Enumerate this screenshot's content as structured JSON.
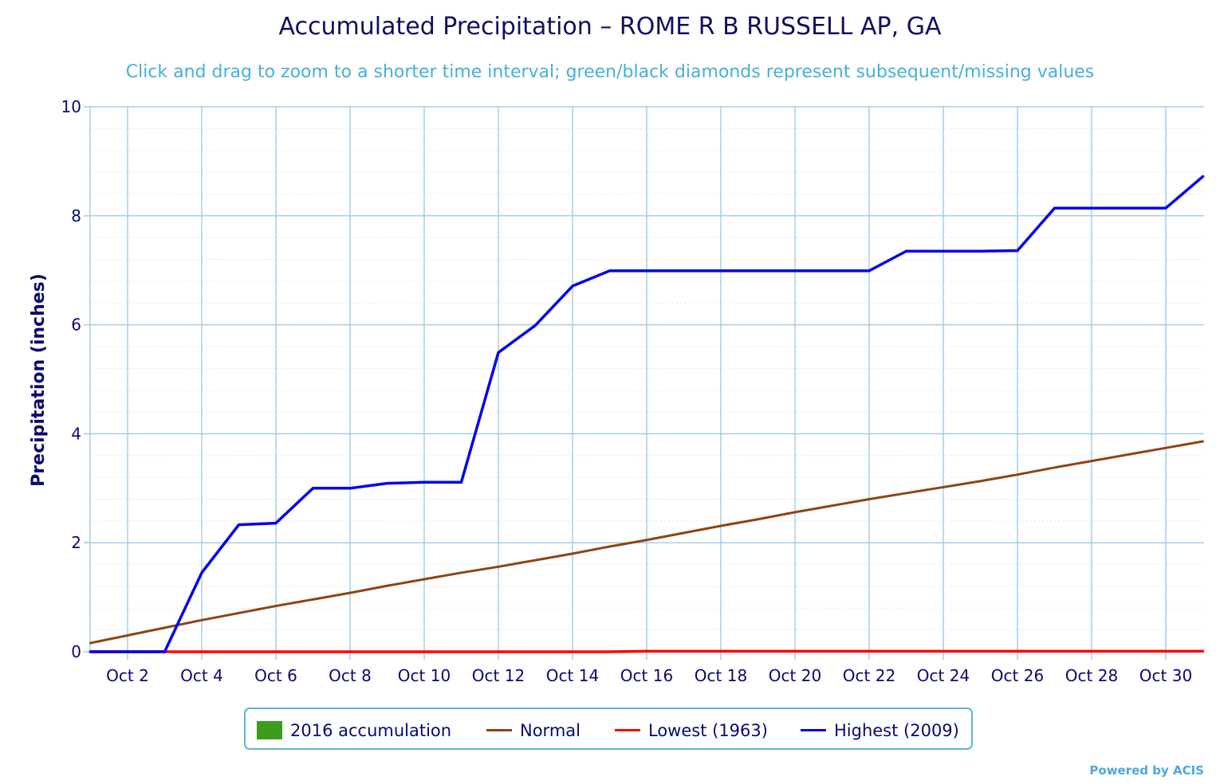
{
  "title": "Accumulated Precipitation – ROME R B RUSSELL AP, GA",
  "subtitle": "Click and drag to zoom to a shorter time interval; green/black diamonds represent subsequent/missing values",
  "credit": "Powered by ACIS",
  "colors": {
    "title": "#10105e",
    "subtitle": "#45b0dd",
    "axis_text": "#0a0a6e",
    "grid": "#a8cde6",
    "minor_grid": "#cfcfcf",
    "accumulation": "#3c9c1c",
    "normal": "#8b4513",
    "lowest": "#ff0000",
    "highest": "#0000ee"
  },
  "legend": [
    {
      "key": "accumulation",
      "label": "2016 accumulation",
      "kind": "box"
    },
    {
      "key": "normal",
      "label": "Normal",
      "kind": "line"
    },
    {
      "key": "lowest",
      "label": "Lowest (1963)",
      "kind": "line"
    },
    {
      "key": "highest",
      "label": "Highest (2009)",
      "kind": "line"
    }
  ],
  "chart_data": {
    "type": "line",
    "title": "Accumulated Precipitation – ROME R B RUSSELL AP, GA",
    "subtitle": "Click and drag to zoom to a shorter time interval; green/black diamonds represent subsequent/missing values",
    "xlabel": "",
    "ylabel": "Precipitation (inches)",
    "x_ticks": [
      "Oct 2",
      "Oct 4",
      "Oct 6",
      "Oct 8",
      "Oct 10",
      "Oct 12",
      "Oct 14",
      "Oct 16",
      "Oct 18",
      "Oct 20",
      "Oct 22",
      "Oct 24",
      "Oct 26",
      "Oct 28",
      "Oct 30"
    ],
    "y_ticks": [
      "0",
      "2",
      "4",
      "6",
      "8",
      "10"
    ],
    "ylim": [
      0,
      10
    ],
    "grid": true,
    "legend_position": "bottom",
    "series": [
      {
        "name": "2016 accumulation",
        "color_key": "accumulation",
        "x": [
          1,
          2,
          3
        ],
        "values": [
          0.0,
          0.0,
          0.0
        ]
      },
      {
        "name": "Normal",
        "color_key": "normal",
        "x": [
          1,
          2,
          3,
          4,
          5,
          6,
          7,
          8,
          9,
          10,
          11,
          12,
          13,
          14,
          15,
          16,
          17,
          18,
          19,
          20,
          21,
          22,
          23,
          24,
          25,
          26,
          27,
          28,
          29,
          30,
          31
        ],
        "values": [
          0.16,
          0.3,
          0.44,
          0.58,
          0.71,
          0.84,
          0.96,
          1.08,
          1.21,
          1.33,
          1.45,
          1.56,
          1.68,
          1.8,
          1.93,
          2.05,
          2.18,
          2.31,
          2.43,
          2.56,
          2.68,
          2.8,
          2.91,
          3.02,
          3.13,
          3.25,
          3.38,
          3.5,
          3.62,
          3.74,
          3.86
        ]
      },
      {
        "name": "Lowest (1963)",
        "color_key": "lowest",
        "x": [
          1,
          2,
          3,
          4,
          5,
          6,
          7,
          8,
          9,
          10,
          11,
          12,
          13,
          14,
          15,
          16,
          17,
          18,
          19,
          20,
          21,
          22,
          23,
          24,
          25,
          26,
          27,
          28,
          29,
          30,
          31
        ],
        "values": [
          0.0,
          0.0,
          0.0,
          0.0,
          0.0,
          0.0,
          0.0,
          0.0,
          0.0,
          0.0,
          0.0,
          0.0,
          0.0,
          0.0,
          0.0,
          0.01,
          0.01,
          0.01,
          0.01,
          0.01,
          0.01,
          0.01,
          0.01,
          0.01,
          0.01,
          0.01,
          0.01,
          0.01,
          0.01,
          0.01,
          0.01
        ]
      },
      {
        "name": "Highest (2009)",
        "color_key": "highest",
        "x": [
          1,
          2,
          3,
          4,
          5,
          6,
          7,
          8,
          9,
          10,
          11,
          12,
          13,
          14,
          15,
          16,
          17,
          18,
          19,
          20,
          21,
          22,
          23,
          24,
          25,
          26,
          27,
          28,
          29,
          30,
          31
        ],
        "values": [
          0.0,
          0.0,
          0.0,
          1.45,
          2.33,
          2.36,
          3.0,
          3.0,
          3.09,
          3.11,
          3.11,
          5.49,
          5.99,
          6.71,
          6.99,
          6.99,
          6.99,
          6.99,
          6.99,
          6.99,
          6.99,
          6.99,
          7.35,
          7.35,
          7.35,
          7.36,
          8.14,
          8.14,
          8.14,
          8.14,
          8.72
        ]
      }
    ]
  }
}
